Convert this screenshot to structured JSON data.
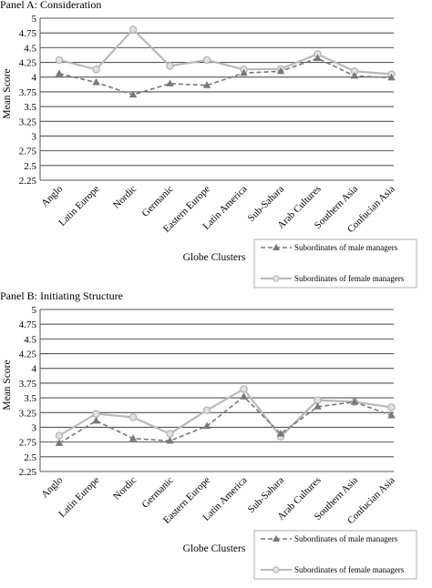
{
  "chart_data": [
    {
      "type": "line",
      "title": "Panel A: Consideration",
      "xlabel": "Globe Clusters",
      "ylabel": "Mean Score",
      "ylim": [
        2.25,
        5
      ],
      "yticks": [
        "2.25",
        "2.5",
        "2.75",
        "3",
        "3.25",
        "3.5",
        "3.75",
        "4",
        "4.25",
        "4.5",
        "4.75",
        "5"
      ],
      "grid": true,
      "legend_position": "bottom-right",
      "categories": [
        "Anglo",
        "Latin Europe",
        "Nordic",
        "Germanic",
        "Eastern Europe",
        "Latin America",
        "Sub-Sahara",
        "Arab Cultures",
        "Southern Asia",
        "Confucian Asia"
      ],
      "series": [
        {
          "name": "Subordinates of male managers",
          "style": "dashed",
          "marker": "triangle",
          "color": "#777777",
          "values": [
            4.06,
            3.91,
            3.7,
            3.89,
            3.86,
            4.07,
            4.1,
            4.32,
            4.02,
            3.99
          ]
        },
        {
          "name": "Subordinates of female managers",
          "style": "solid",
          "marker": "circle",
          "color": "#b9b9b9",
          "values": [
            4.29,
            4.13,
            4.81,
            4.19,
            4.29,
            4.13,
            4.14,
            4.39,
            4.1,
            4.05
          ]
        }
      ]
    },
    {
      "type": "line",
      "title": "Panel B: Initiating Structure",
      "xlabel": "Globe Clusters",
      "ylabel": "Mean Score",
      "ylim": [
        2.25,
        5
      ],
      "yticks": [
        "2.25",
        "2.5",
        "2.75",
        "3",
        "3.25",
        "3.5",
        "3.75",
        "4",
        "4.25",
        "4.5",
        "4.75",
        "5"
      ],
      "grid": true,
      "legend_position": "bottom-right",
      "categories": [
        "Anglo",
        "Latin Europe",
        "Nordic",
        "Germanic",
        "Eastern Europe",
        "Latin America",
        "Sub-Sahara",
        "Arab Cultures",
        "Southern Asia",
        "Confucian Asia"
      ],
      "series": [
        {
          "name": "Subordinates of male managers",
          "style": "dashed",
          "marker": "triangle",
          "color": "#777777",
          "values": [
            2.73,
            3.11,
            2.81,
            2.77,
            3.02,
            3.52,
            2.89,
            3.35,
            3.43,
            3.2
          ]
        },
        {
          "name": "Subordinates of female managers",
          "style": "solid",
          "marker": "circle",
          "color": "#b9b9b9",
          "values": [
            2.86,
            3.23,
            3.17,
            2.89,
            3.29,
            3.65,
            2.84,
            3.46,
            3.43,
            3.34
          ]
        }
      ]
    }
  ]
}
